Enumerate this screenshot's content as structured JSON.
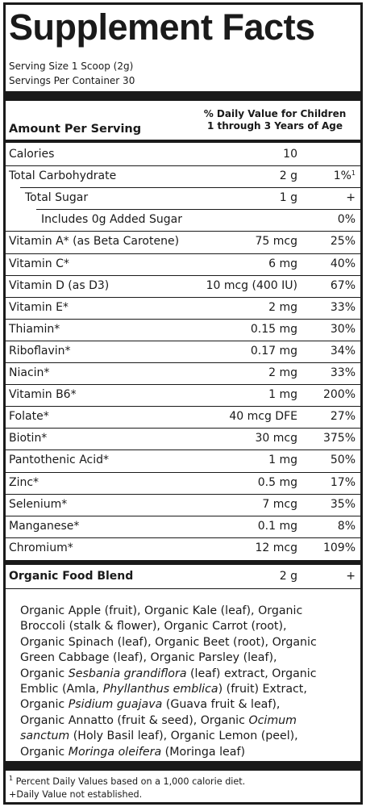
{
  "title": "Supplement Facts",
  "serving_size": "Serving Size 1 Scoop (2g)",
  "servings_per_container": "Servings Per Container 30",
  "header": {
    "amount_per_serving": "Amount Per Serving",
    "dv_line1": "% Daily Value for Children",
    "dv_line2": "1 through 3 Years of Age"
  },
  "nutrients": [
    {
      "name": "Calories",
      "amount": "10",
      "dv": ""
    },
    {
      "name": "Total Carbohydrate",
      "amount": "2 g",
      "dv": "1%",
      "dv_mark": "1"
    },
    {
      "name": "Total Sugar",
      "amount": "1 g",
      "dv": "+"
    },
    {
      "name": "Includes 0g Added Sugar",
      "amount": "",
      "dv": "0%"
    },
    {
      "name": "Vitamin A* (as Beta Carotene)",
      "amount": "75 mcg",
      "dv": "25%"
    },
    {
      "name": "Vitamin C*",
      "amount": "6 mg",
      "dv": "40%"
    },
    {
      "name": "Vitamin D (as D3)",
      "amount": "10 mcg (400 IU)",
      "dv": "67%"
    },
    {
      "name": "Vitamin E*",
      "amount": "2 mg",
      "dv": "33%"
    },
    {
      "name": "Thiamin*",
      "amount": "0.15 mg",
      "dv": "30%"
    },
    {
      "name": "Riboflavin*",
      "amount": "0.17 mg",
      "dv": "34%"
    },
    {
      "name": "Niacin*",
      "amount": "2 mg",
      "dv": "33%"
    },
    {
      "name": "Vitamin B6*",
      "amount": "1 mg",
      "dv": "200%"
    },
    {
      "name": "Folate*",
      "amount": "40 mcg DFE",
      "dv": "27%"
    },
    {
      "name": "Biotin*",
      "amount": "30 mcg",
      "dv": "375%"
    },
    {
      "name": "Pantothenic Acid*",
      "amount": "1 mg",
      "dv": "50%"
    },
    {
      "name": "Zinc*",
      "amount": "0.5 mg",
      "dv": "17%"
    },
    {
      "name": "Selenium*",
      "amount": "7 mcg",
      "dv": "35%"
    },
    {
      "name": "Manganese*",
      "amount": "0.1 mg",
      "dv": "8%"
    },
    {
      "name": "Chromium*",
      "amount": "12 mcg",
      "dv": "109%"
    }
  ],
  "blend": {
    "name": "Organic Food Blend",
    "amount": "2 g",
    "dv": "+"
  },
  "ingredients": [
    [
      {
        "t": "Organic Apple (fruit), Organic Kale (leaf), Organic"
      }
    ],
    [
      {
        "t": "Broccoli (stalk & flower), Organic Carrot (root),"
      }
    ],
    [
      {
        "t": "Organic Spinach (leaf), Organic Beet (root), Organic"
      }
    ],
    [
      {
        "t": "Green Cabbage (leaf), Organic Parsley (leaf),"
      }
    ],
    [
      {
        "t": "Organic "
      },
      {
        "t": "Sesbania grandiflora",
        "i": true
      },
      {
        "t": " (leaf) extract, Organic"
      }
    ],
    [
      {
        "t": "Emblic (Amla, "
      },
      {
        "t": "Phyllanthus emblica",
        "i": true
      },
      {
        "t": ") (fruit) Extract,"
      }
    ],
    [
      {
        "t": "Organic "
      },
      {
        "t": "Psidium guajava",
        "i": true
      },
      {
        "t": " (Guava fruit & leaf),"
      }
    ],
    [
      {
        "t": "Organic Annatto (fruit & seed), Organic "
      },
      {
        "t": "Ocimum",
        "i": true
      }
    ],
    [
      {
        "t": "sanctum",
        "i": true
      },
      {
        "t": " (Holy Basil leaf), Organic Lemon (peel),"
      }
    ],
    [
      {
        "t": "Organic "
      },
      {
        "t": "Moringa oleifera",
        "i": true
      },
      {
        "t": " (Moringa leaf)"
      }
    ]
  ],
  "footnotes": {
    "note1_mark": "1",
    "note1": " Percent Daily Values based on a 1,000 calorie diet.",
    "note2": "+Daily Value not established."
  }
}
